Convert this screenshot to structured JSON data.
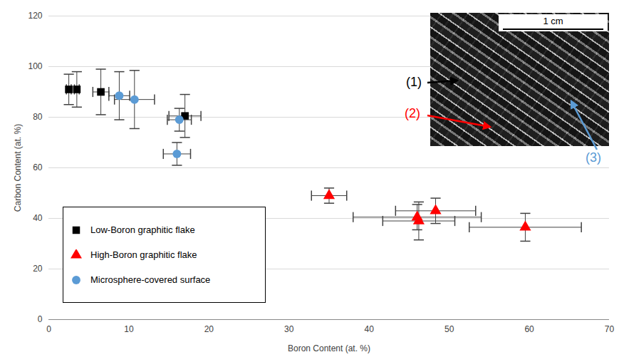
{
  "chart_data": {
    "type": "scatter",
    "x_label": "Boron Content (at. %)",
    "y_label": "Carbon Content (at. %)",
    "xlim": [
      0,
      70
    ],
    "ylim": [
      0,
      120
    ],
    "xticks": [
      0,
      10,
      20,
      30,
      40,
      50,
      60,
      70
    ],
    "yticks": [
      0,
      20,
      40,
      60,
      80,
      100,
      120
    ],
    "grid": true,
    "legend": "lower left",
    "series": [
      {
        "name": "Low-Boron graphitic flake",
        "color": "#000000",
        "marker": "square",
        "x": [
          2.5,
          3.5,
          6.5,
          17.0
        ],
        "values": [
          91,
          91,
          90,
          80.5
        ],
        "x_errors": [
          0.3,
          0.3,
          1.0,
          2.0
        ],
        "y_errors": [
          6,
          7,
          9,
          8.5
        ]
      },
      {
        "name": "High-Boron graphitic flake",
        "color": "#ff0000",
        "marker": "triangle",
        "x": [
          35.0,
          46.0,
          46.2,
          48.3,
          59.5
        ],
        "values": [
          49,
          40.5,
          39,
          43,
          36.5
        ],
        "x_errors": [
          2.2,
          8.0,
          4.5,
          5.0,
          7.0
        ],
        "y_errors": [
          3,
          5,
          7.5,
          5,
          5.5
        ]
      },
      {
        "name": "Microsphere-covered surface",
        "color": "#5b9bd5",
        "marker": "circle",
        "x": [
          8.8,
          10.7,
          16.3,
          16.0
        ],
        "values": [
          88.5,
          87,
          79,
          65.5
        ],
        "x_errors": [
          1.3,
          2.5,
          1.5,
          1.7
        ],
        "y_errors": [
          9.5,
          11.5,
          4.5,
          4.5
        ]
      }
    ],
    "inset": {
      "scale_label": "1 cm",
      "labels": [
        {
          "text": "(1)",
          "color": "#000000"
        },
        {
          "text": "(2)",
          "color": "#ff0000"
        },
        {
          "text": "(3)",
          "color": "#5b9bd5"
        }
      ]
    }
  }
}
